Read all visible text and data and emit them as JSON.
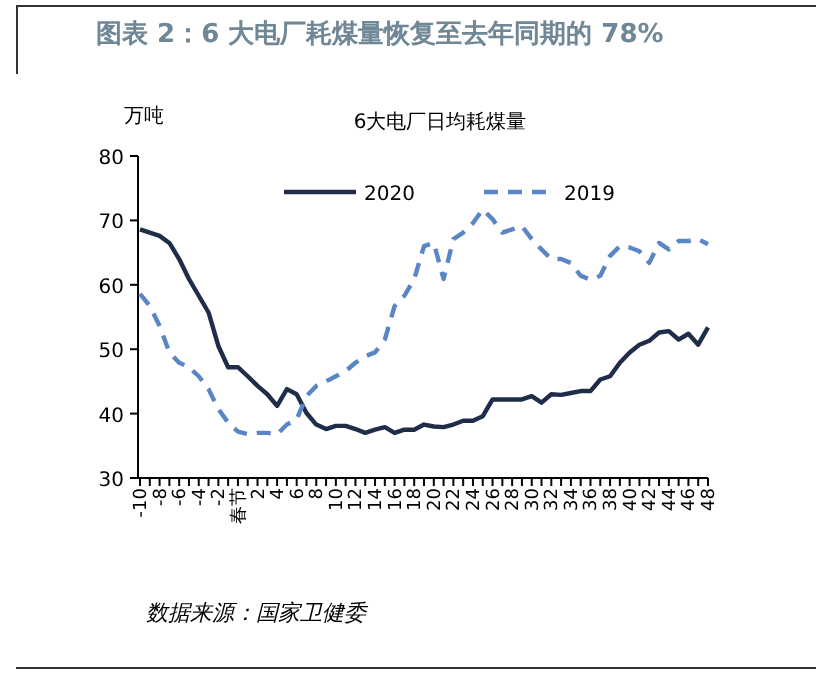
{
  "chart_data": {
    "type": "line",
    "title": "图表 2：6 大电厂耗煤量恢复至去年同期的 78%",
    "subtitle": "6大电厂日均耗煤量",
    "ylabel": "万吨",
    "categories": [
      "-10",
      null,
      "-8",
      null,
      "-6",
      null,
      "-4",
      null,
      "-2",
      null,
      "春节",
      null,
      "2",
      null,
      "4",
      null,
      "6",
      null,
      "8",
      null,
      "10",
      null,
      "12",
      null,
      "14",
      null,
      "16",
      null,
      "18",
      null,
      "20",
      null,
      "22",
      null,
      "24",
      null,
      "26",
      null,
      "28",
      null,
      "30",
      null,
      "32",
      null,
      "34",
      null,
      "36",
      null,
      "38",
      null,
      "40",
      null,
      "42",
      null,
      "44",
      null,
      "46",
      null,
      "48"
    ],
    "series": [
      {
        "name": "2020",
        "color": "#1f2d4a",
        "line_style": "solid",
        "values": [
          68.6,
          68.1,
          67.6,
          66.5,
          64,
          60.9,
          58.3,
          55.7,
          50.5,
          47.2,
          47.2,
          45.8,
          44.3,
          43,
          41.2,
          43.8,
          43,
          40.1,
          38.3,
          37.6,
          38.1,
          38.1,
          37.6,
          37,
          37.5,
          37.9,
          37,
          37.5,
          37.5,
          38.3,
          38,
          37.9,
          38.3,
          38.9,
          38.9,
          39.6,
          42.2,
          42.2,
          42.2,
          42.2,
          42.7,
          41.7,
          43,
          42.9,
          43.2,
          43.5,
          43.5,
          45.3,
          45.8,
          47.9,
          49.5,
          50.7,
          51.3,
          52.6,
          52.8,
          51.5,
          52.4,
          50.7,
          53.4
        ]
      },
      {
        "name": "2019",
        "color": "#5b86c5",
        "line_style": "dashed",
        "values": [
          58.6,
          56.7,
          53.6,
          49.5,
          47.9,
          47.2,
          45.8,
          43.8,
          40.7,
          38.6,
          37.2,
          36.8,
          37,
          37,
          36.8,
          38.3,
          39.1,
          42.7,
          44.3,
          45,
          45.8,
          46.6,
          47.9,
          48.9,
          49.5,
          51.5,
          56.7,
          58.3,
          60.9,
          66,
          66.5,
          60.9,
          67.1,
          68.1,
          69.6,
          71.7,
          70.2,
          68.1,
          68.6,
          69.1,
          67.1,
          65.5,
          64,
          64,
          63.4,
          61.4,
          60.8,
          61.4,
          64.5,
          66,
          65.8,
          65.2,
          63.4,
          66.5,
          65.5,
          66.8,
          66.8,
          67.1,
          66.3
        ]
      }
    ],
    "ylim": [
      30,
      80
    ],
    "yticks": [
      30,
      40,
      50,
      60,
      70,
      80
    ],
    "legend": "top",
    "grid": false,
    "annotations": [
      "数据来源：国家卫健委"
    ]
  }
}
